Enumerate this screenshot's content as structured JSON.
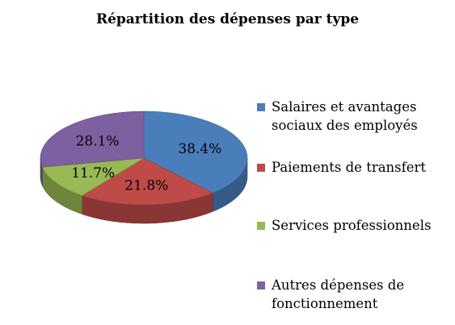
{
  "chart_data": {
    "type": "pie",
    "title": "Répartition des dépenses par type",
    "categories": [
      "Salaires et avantages sociaux des employés",
      "Paiements de transfert",
      "Services professionnels",
      "Autres dépenses de fonctionnement"
    ],
    "values": [
      38.4,
      21.8,
      11.7,
      28.1
    ],
    "value_labels": [
      "38.4%",
      "21.8%",
      "11.7%",
      "28.1%"
    ],
    "colors": [
      "#4a7ebb",
      "#be4b48",
      "#98b954",
      "#7d60a0"
    ],
    "legend_position": "right"
  }
}
